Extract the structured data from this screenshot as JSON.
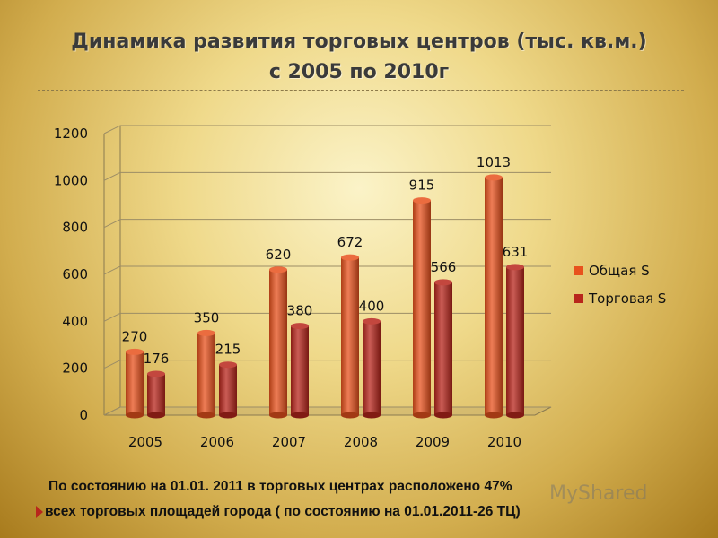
{
  "chart_data": {
    "type": "bar",
    "title": "Динамика развития торговых центров (тыс. кв.м.)",
    "subtitle": "с 2005 по 2010г",
    "categories": [
      "2005",
      "2006",
      "2007",
      "2008",
      "2009",
      "2010"
    ],
    "series": [
      {
        "name": "Общая S",
        "values": [
          270,
          350,
          620,
          672,
          915,
          1013
        ],
        "color": "#e8521d"
      },
      {
        "name": "Торговая S",
        "values": [
          176,
          215,
          380,
          400,
          566,
          631
        ],
        "color": "#b8261c"
      }
    ],
    "ylim": [
      0,
      1200
    ],
    "yticks": [
      0,
      200,
      400,
      600,
      800,
      1000,
      1200
    ],
    "grid": true,
    "legend": "right",
    "style": "3d"
  },
  "footer": {
    "line1": "По состоянию на 01.01. 2011 в торговых центрах расположено  47%",
    "line2": "всех торговых площадей города  ( по состоянию на 01.01.2011-26 ТЦ)"
  },
  "watermark": "MyShared"
}
